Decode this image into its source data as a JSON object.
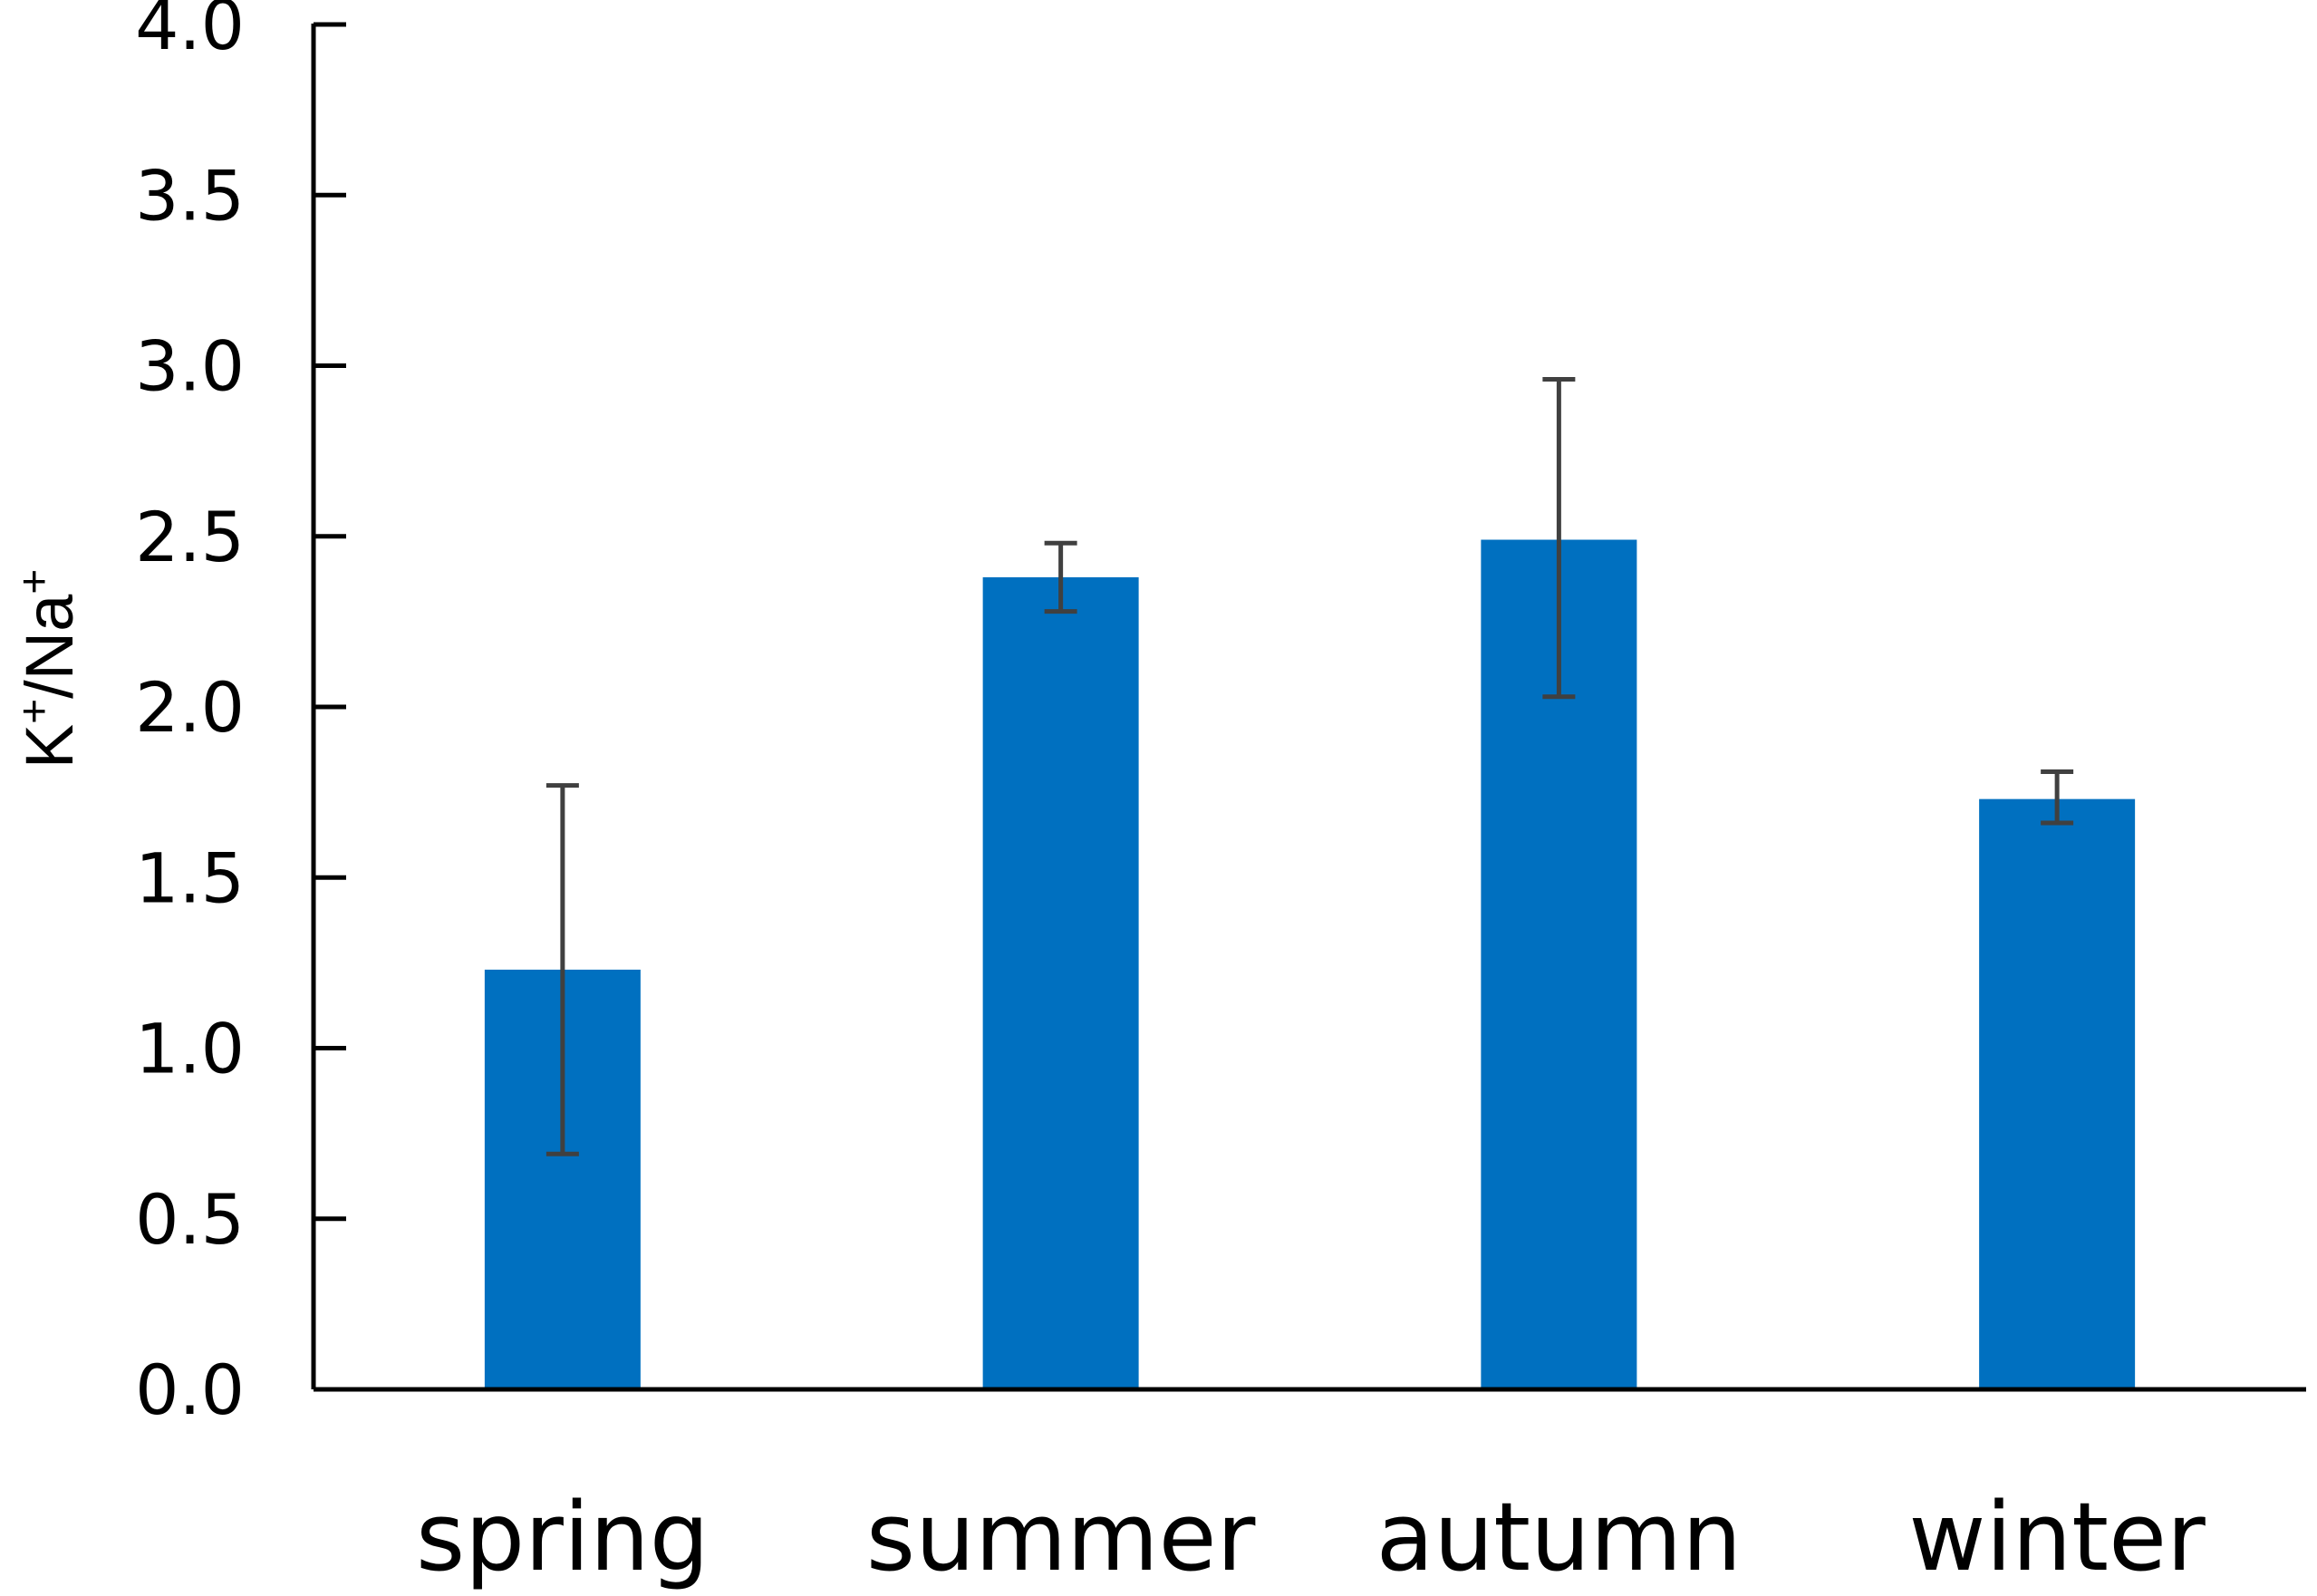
{
  "chart_data": {
    "type": "bar",
    "categories": [
      "spring",
      "summer",
      "autumn",
      "winter"
    ],
    "values": [
      1.23,
      2.38,
      2.49,
      1.73
    ],
    "error_low": [
      0.69,
      2.28,
      2.03,
      1.66
    ],
    "error_high": [
      1.77,
      2.48,
      2.96,
      1.81
    ],
    "ylabel": {
      "k": "K",
      "plus1": "+",
      "slash_na": "/Na",
      "plus2": "+"
    },
    "ylim": [
      0,
      4.0
    ],
    "ytick_values": [
      0,
      0.5,
      1.0,
      1.5,
      2.0,
      2.5,
      3.0,
      3.5,
      4.0
    ],
    "yticks": [
      "0.0",
      "0.5",
      "1.0",
      "1.5",
      "2.0",
      "2.5",
      "3.0",
      "3.5",
      "4.0"
    ],
    "grid": false,
    "legend": "none",
    "colors": {
      "bar": "#0070C0",
      "error_bar": "#404040",
      "axis": "#000000"
    }
  }
}
